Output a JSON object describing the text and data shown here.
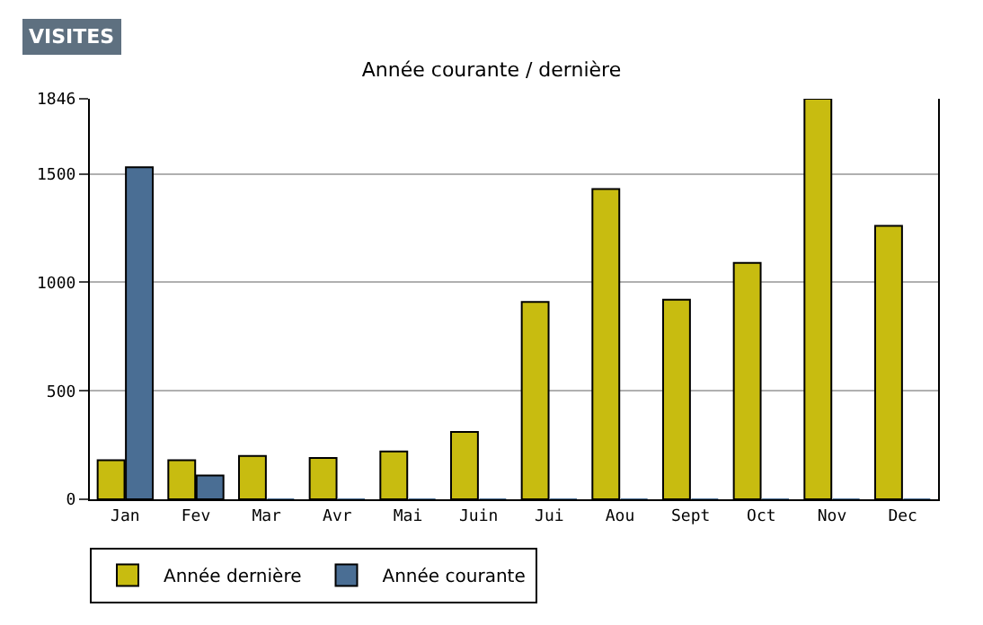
{
  "chart_data": {
    "type": "bar",
    "title": "Année courante / dernière",
    "annotations": [
      "VISITES"
    ],
    "categories": [
      "Jan",
      "Fev",
      "Mar",
      "Avr",
      "Mai",
      "Juin",
      "Jui",
      "Aou",
      "Sept",
      "Oct",
      "Nov",
      "Dec"
    ],
    "series": [
      {
        "name": "Année dernière",
        "color": "#c8bc10",
        "values": [
          180,
          180,
          200,
          190,
          220,
          310,
          910,
          1430,
          920,
          1090,
          1846,
          1260
        ]
      },
      {
        "name": "Année courante",
        "color": "#4a6e94",
        "values": [
          1530,
          110,
          0,
          0,
          0,
          0,
          0,
          0,
          0,
          0,
          0,
          0
        ]
      }
    ],
    "ylim": [
      0,
      1846
    ],
    "yticks": [
      0,
      500,
      1000,
      1500,
      1846
    ],
    "grid": "y",
    "legend": "bottom"
  }
}
